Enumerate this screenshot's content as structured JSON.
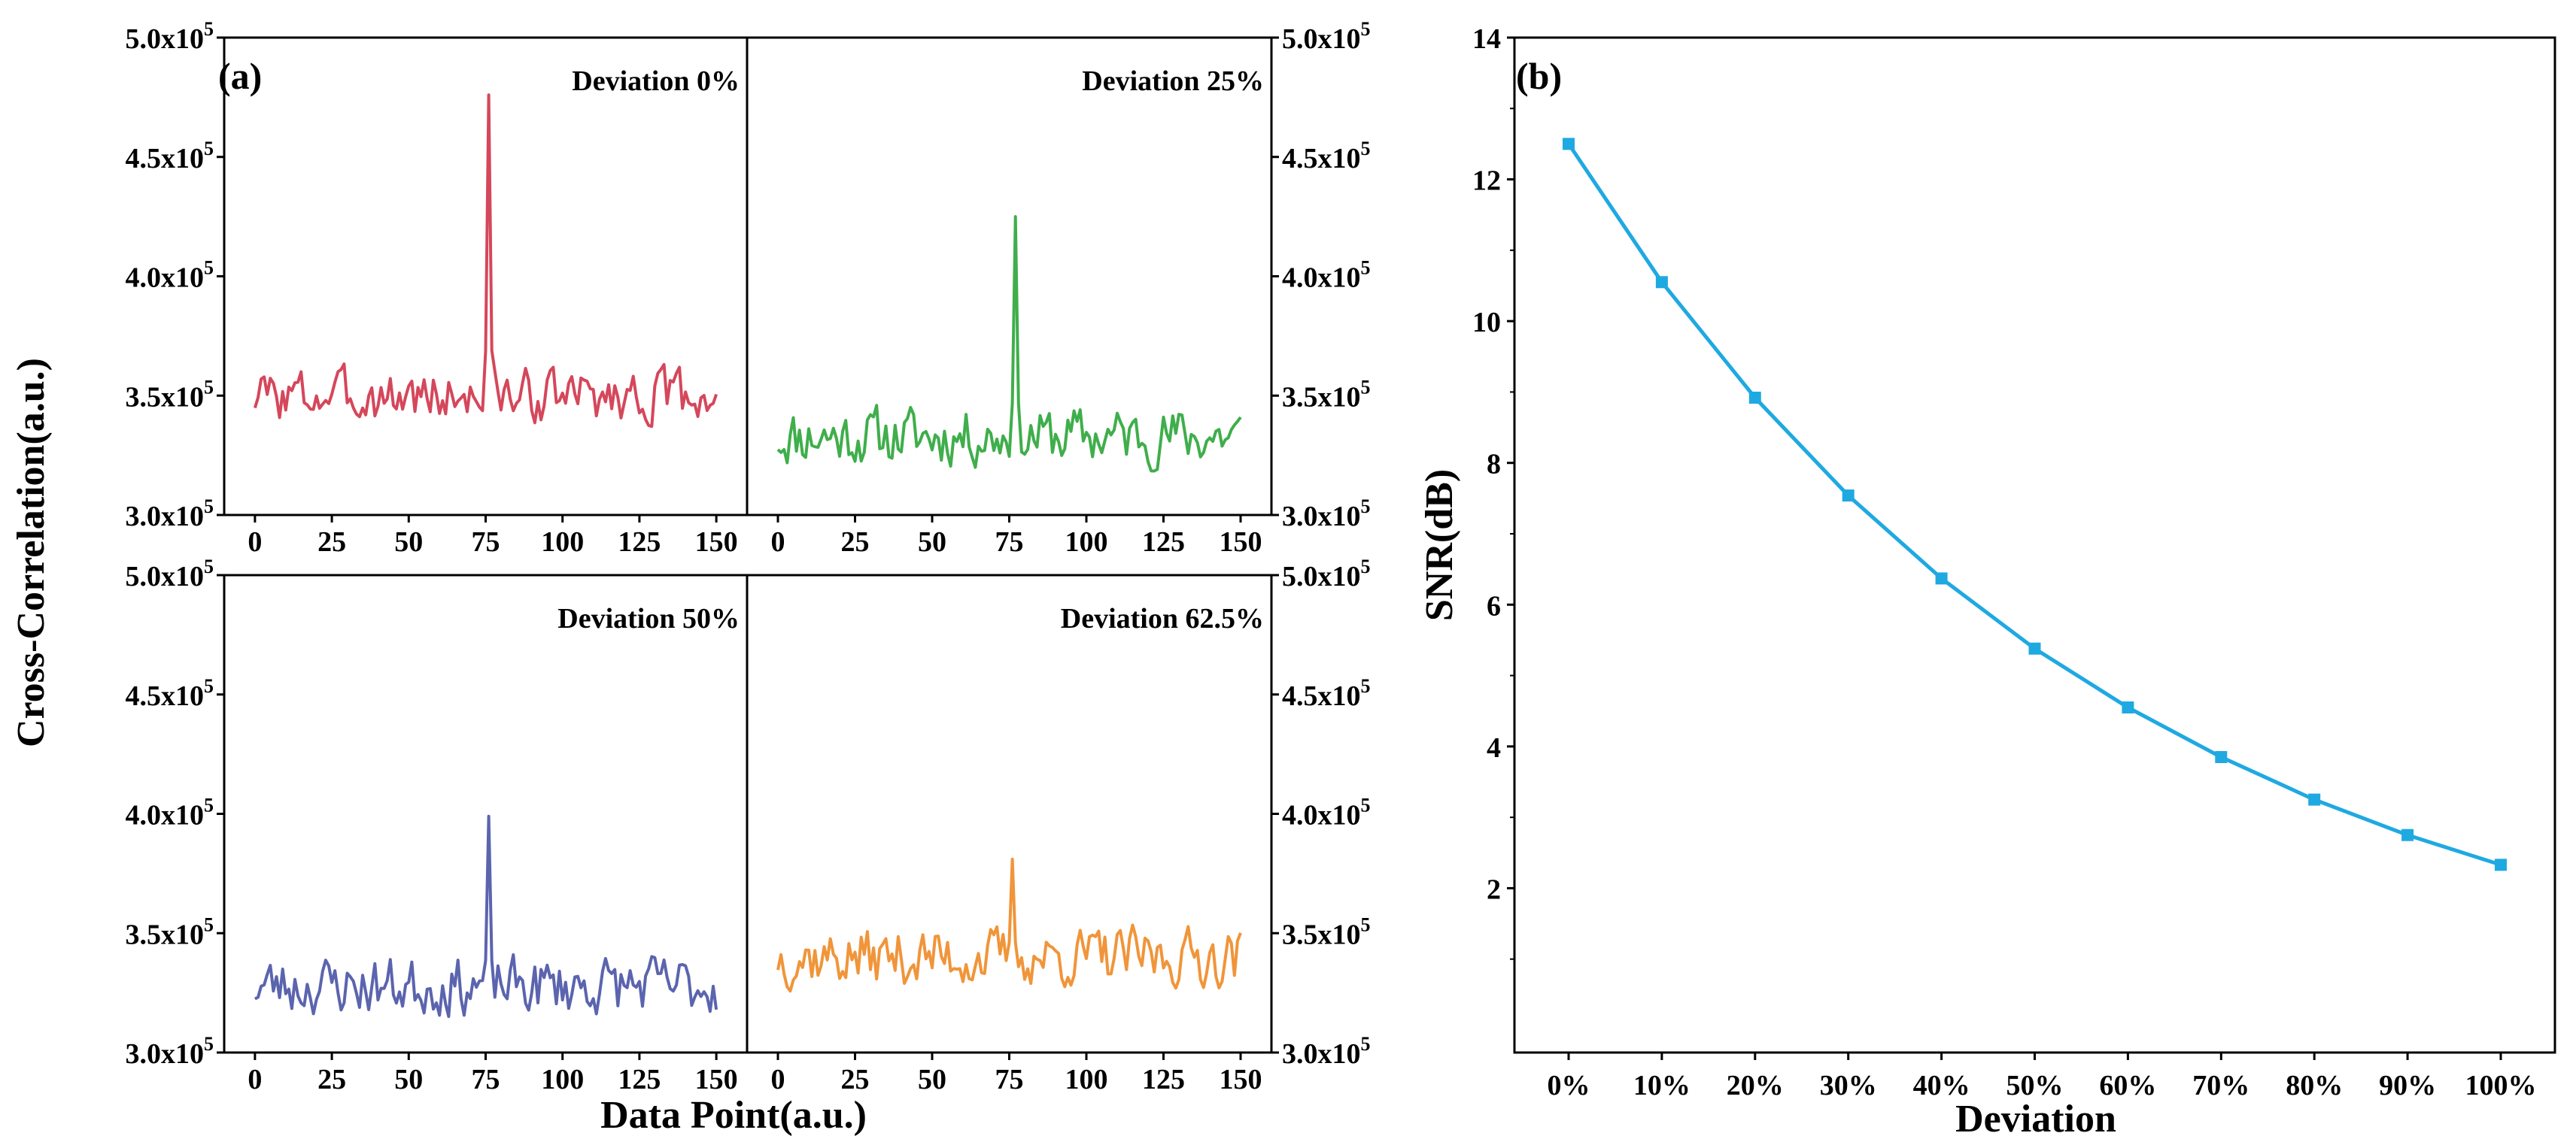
{
  "figure": {
    "panel_a_label": "(a)",
    "panel_b_label": "(b)"
  },
  "colors": {
    "deviation_0": "#d5475b",
    "deviation_25": "#3fae4b",
    "deviation_50": "#5b64ae",
    "deviation_62_5": "#f0953a",
    "snr_line": "#1fa9e1",
    "axis": "#000000"
  },
  "chart_data": [
    {
      "type": "line",
      "panel": "(a)",
      "xlabel": "Data Point(a.u.)",
      "ylabel": "Cross-Correlation(a.u.)",
      "xlim": [
        -10,
        160
      ],
      "ylim": [
        300000,
        500000
      ],
      "x_ticks": [
        "0",
        "25",
        "50",
        "75",
        "100",
        "125",
        "150"
      ],
      "y_ticks": [
        {
          "mantissa": "3.0x10",
          "exponent": "5",
          "value": 300000
        },
        {
          "mantissa": "3.5x10",
          "exponent": "5",
          "value": 350000
        },
        {
          "mantissa": "4.0x10",
          "exponent": "5",
          "value": 400000
        },
        {
          "mantissa": "4.5x10",
          "exponent": "5",
          "value": 450000
        },
        {
          "mantissa": "5.0x10",
          "exponent": "5",
          "value": 500000
        }
      ],
      "subplots": [
        {
          "label": "Deviation 0%",
          "color": "#d5475b",
          "baseline": 350000,
          "noise": 9000,
          "peak_x": 76,
          "peak_value": 476000,
          "x_range": [
            0,
            150
          ],
          "seed": 3
        },
        {
          "label": "Deviation 25%",
          "color": "#3fae4b",
          "baseline": 333000,
          "noise": 10000,
          "peak_x": 77,
          "peak_value": 425000,
          "x_range": [
            0,
            150
          ],
          "seed": 11
        },
        {
          "label": "Deviation 50%",
          "color": "#5b64ae",
          "baseline": 328000,
          "noise": 10000,
          "peak_x": 76,
          "peak_value": 399000,
          "x_range": [
            0,
            150
          ],
          "seed": 23
        },
        {
          "label": "Deviation 62.5%",
          "color": "#f0953a",
          "baseline": 340000,
          "noise": 10000,
          "peak_x": 76,
          "peak_value": 381000,
          "x_range": [
            0,
            150
          ],
          "seed": 37
        }
      ]
    },
    {
      "type": "line",
      "panel": "(b)",
      "xlabel": "Deviation",
      "ylabel": "SNR(dB)",
      "categories": [
        "0%",
        "10%",
        "20%",
        "30%",
        "40%",
        "50%",
        "60%",
        "70%",
        "80%",
        "90%",
        "100%"
      ],
      "values": [
        12.5,
        10.55,
        8.92,
        7.54,
        6.37,
        5.38,
        4.55,
        3.85,
        3.25,
        2.75,
        2.33
      ],
      "ylim": [
        0,
        14
      ],
      "y_ticks": [
        "2",
        "4",
        "6",
        "8",
        "10",
        "12",
        "14"
      ],
      "color": "#1fa9e1",
      "marker": "square"
    }
  ]
}
